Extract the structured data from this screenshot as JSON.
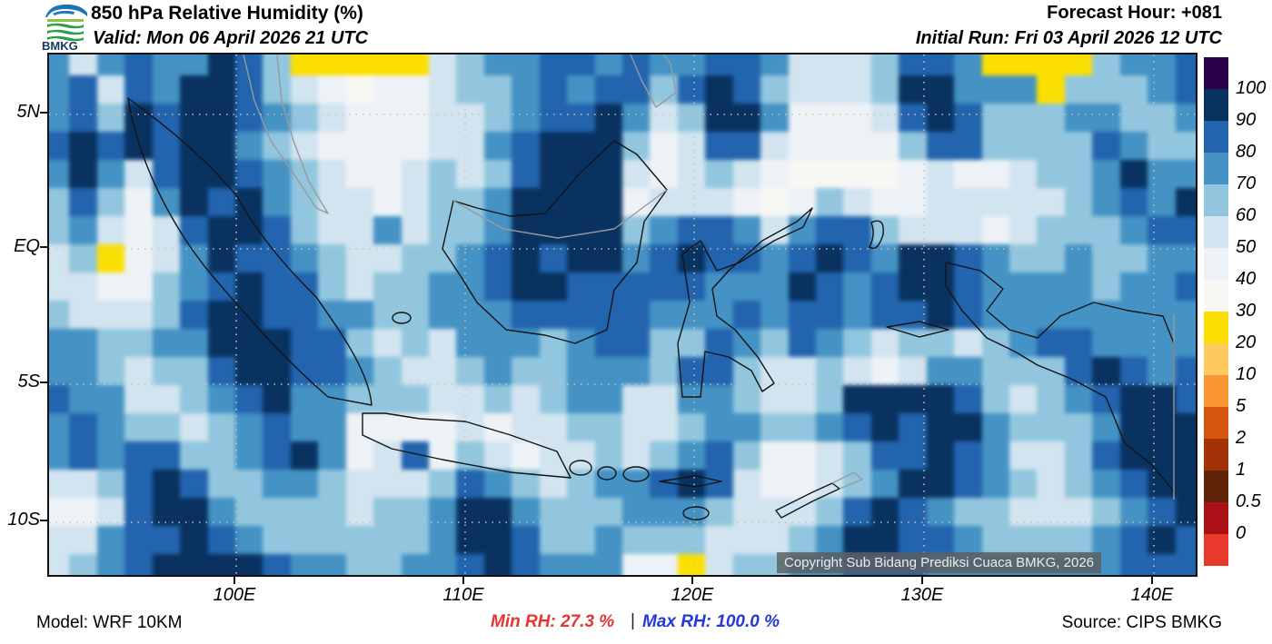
{
  "header": {
    "logo_text": "BMKG",
    "title": "850 hPa Relative Humidity (%)",
    "valid": "Valid: Mon 06 April 2026 21 UTC",
    "forecast_hour": "Forecast Hour: +081",
    "initial_run": "Initial Run: Fri 03 April 2026 12 UTC"
  },
  "footer": {
    "model": "Model: WRF 10KM",
    "min_rh": "Min RH:  27.3 %",
    "separator": "|",
    "max_rh": "Max RH: 100.0 %",
    "source": "Source: CIPS BMKG"
  },
  "map": {
    "copyright": "Copyright Sub Bidang Prediksi Cuaca BMKG, 2026",
    "lat_labels": [
      "5N",
      "EQ",
      "5S",
      "10S"
    ],
    "lon_labels": [
      "100E",
      "110E",
      "120E",
      "130E",
      "140E"
    ]
  },
  "colorbar": {
    "labels": [
      "100",
      "90",
      "80",
      "70",
      "60",
      "50",
      "40",
      "30",
      "20",
      "10",
      "5",
      "2",
      "1",
      "0.5",
      "0"
    ],
    "colors": [
      "#2B014D",
      "#093261",
      "#2264AE",
      "#4493C4",
      "#92C6DE",
      "#D2E4F0",
      "#EDF2F6",
      "#F7F7F4",
      "#FBDF02",
      "#FEC95F",
      "#F89632",
      "#D4560E",
      "#A33306",
      "#5F2407",
      "#AA1016",
      "#E8392C"
    ]
  },
  "chart_data": {
    "type": "heatmap",
    "title": "850 hPa Relative Humidity (%)",
    "units": "% RH",
    "lon_range": [
      91.8,
      142.0
    ],
    "lat_range": [
      -12.2,
      7.2
    ],
    "min_value": 27.3,
    "max_value": 100.0,
    "level_meaning": {
      "9": "90-100",
      "8": "80-90",
      "7": "70-80",
      "6": "60-70",
      "5": "50-60",
      "4": "40-50",
      "3": "30-40",
      "2": "20-30 (yellow)"
    },
    "palette": {
      "9": "#093261",
      "8": "#2264AE",
      "7": "#4493C4",
      "6": "#92C6DE",
      "5": "#D2E4F0",
      "4": "#EDF2F6",
      "3": "#F7F7F4",
      "2": "#FBDF02"
    },
    "grid_cols": 42,
    "grid_rows_count": 19,
    "grid_rows": [
      "757877986222225677887877887555688722226778",
      "785879986543445667878868986555699777266678",
      "786989987654445567889756997444589866677667",
      "898989976544445578999645885444468866668766",
      "797589987654456568999545654333345445667977",
      "686479897655456679999455543465445555567879",
      "675458998655756679999678875788655545666788",
      "562457988765566789899789887898799876676677",
      "554467898865667789988888777987899877776778",
      "655568998877667778888877787887889877777777",
      "776677999886565777678866876876566567887777",
      "776566899887655676677768865565457766689878",
      "877556789776665565677557765569999865678998",
      "787665678774444545566556776678989976667999",
      "787886678974584654556567864456889875568999",
      "556898667765556876567789854456799876567899",
      "445899766665667997666777655568987665556789",
      "557889876666667998667666555679988766667898",
      "567899998776677898777442566778887777777888"
    ]
  }
}
